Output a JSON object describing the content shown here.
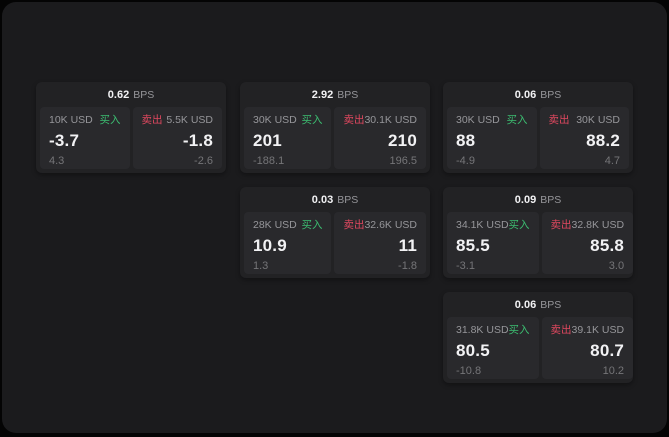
{
  "labels": {
    "bps": "BPS",
    "buy": "买入",
    "sell": "卖出"
  },
  "colors": {
    "background": "#040404",
    "panel_bg": "#1b1b1d",
    "card_bg": "#222224",
    "tile_bg": "#29292c",
    "buy": "#3cbd71",
    "sell": "#e0485f",
    "text_primary": "#f2f2f4",
    "text_secondary": "#96969a",
    "text_dim": "#757578"
  },
  "cards": [
    {
      "col": 1,
      "row": 1,
      "bps": "0.62",
      "buy": {
        "size": "10K USD",
        "value": "-3.7",
        "delta": "4.3"
      },
      "sell": {
        "size": "5.5K USD",
        "value": "-1.8",
        "delta": "-2.6"
      }
    },
    {
      "col": 2,
      "row": 1,
      "bps": "2.92",
      "buy": {
        "size": "30K USD",
        "value": "201",
        "delta": "-188.1"
      },
      "sell": {
        "size": "30.1K USD",
        "value": "210",
        "delta": "196.5"
      }
    },
    {
      "col": 3,
      "row": 1,
      "bps": "0.06",
      "buy": {
        "size": "30K USD",
        "value": "88",
        "delta": "-4.9"
      },
      "sell": {
        "size": "30K USD",
        "value": "88.2",
        "delta": "4.7"
      }
    },
    {
      "col": 2,
      "row": 2,
      "bps": "0.03",
      "buy": {
        "size": "28K USD",
        "value": "10.9",
        "delta": "1.3"
      },
      "sell": {
        "size": "32.6K USD",
        "value": "11",
        "delta": "-1.8"
      }
    },
    {
      "col": 3,
      "row": 2,
      "bps": "0.09",
      "buy": {
        "size": "34.1K USD",
        "value": "85.5",
        "delta": "-3.1"
      },
      "sell": {
        "size": "32.8K USD",
        "value": "85.8",
        "delta": "3.0"
      }
    },
    {
      "col": 3,
      "row": 3,
      "bps": "0.06",
      "buy": {
        "size": "31.8K USD",
        "value": "80.5",
        "delta": "-10.8"
      },
      "sell": {
        "size": "39.1K USD",
        "value": "80.7",
        "delta": "10.2"
      }
    }
  ]
}
